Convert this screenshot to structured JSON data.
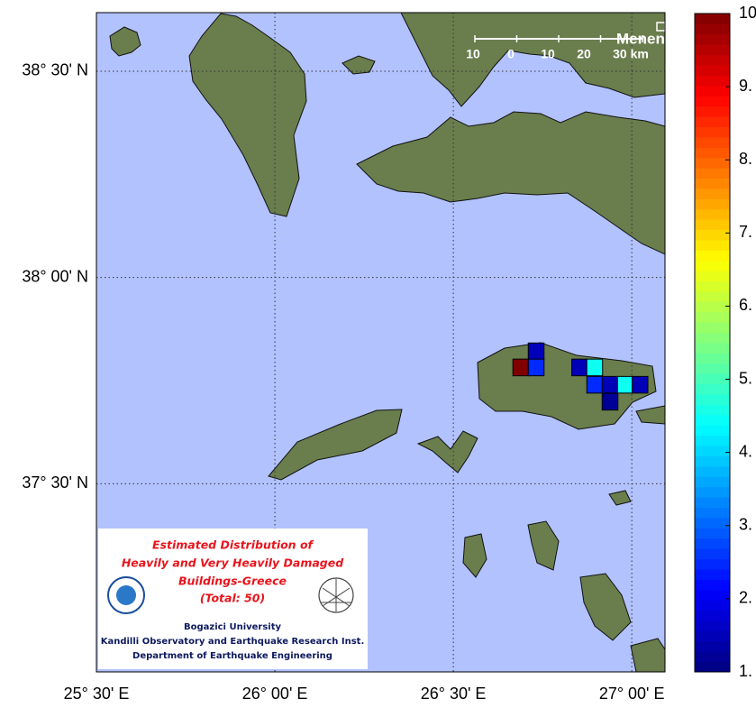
{
  "map": {
    "xlim": [
      25.5,
      27.093
    ],
    "ylim": [
      37.044,
      38.642
    ],
    "xticks": [
      {
        "value": 25.5,
        "label": "25° 30' E"
      },
      {
        "value": 26.0,
        "label": "26° 00' E"
      },
      {
        "value": 26.5,
        "label": "26° 30' E"
      },
      {
        "value": 27.0,
        "label": "27° 00' E"
      }
    ],
    "yticks": [
      {
        "value": 37.5,
        "label": "37° 30' N"
      },
      {
        "value": 38.0,
        "label": "38° 00' N"
      },
      {
        "value": 38.5,
        "label": "38° 30' N"
      }
    ],
    "grid": true,
    "cells": {
      "lon": [
        26.732,
        26.689,
        26.732,
        26.854,
        26.896,
        26.896,
        26.939,
        26.982,
        27.023,
        26.939
      ],
      "lat": [
        37.821,
        37.782,
        37.782,
        37.782,
        37.782,
        37.74,
        37.74,
        37.74,
        37.74,
        37.699
      ],
      "values": [
        1.5,
        10,
        2.5,
        1.5,
        4.5,
        2.5,
        1.5,
        4.5,
        1.5,
        1.2
      ]
    },
    "scale_bar": {
      "labels": [
        "10",
        "0",
        "10",
        "20",
        "30 km"
      ],
      "place": "Menen"
    }
  },
  "colorbar": {
    "lim": [
      1,
      10
    ],
    "colormap": "jet",
    "ticks": [
      {
        "value": 1,
        "label": "1."
      },
      {
        "value": 2,
        "label": "2."
      },
      {
        "value": 3,
        "label": "3."
      },
      {
        "value": 4,
        "label": "4."
      },
      {
        "value": 5,
        "label": "5."
      },
      {
        "value": 6,
        "label": "6."
      },
      {
        "value": 7,
        "label": "7."
      },
      {
        "value": 8,
        "label": "8."
      },
      {
        "value": 9,
        "label": "9."
      },
      10
    ]
  },
  "legend": {
    "lines": [
      "Estimated Distribution of",
      "Heavily and Very Heavily Damaged",
      "Buildings-Greece",
      "(Total: 50)"
    ],
    "institution": [
      "Bogazici University",
      "Kandilli Observatory and Earthquake Research Inst.",
      "Department of Earthquake Engineering"
    ]
  }
}
